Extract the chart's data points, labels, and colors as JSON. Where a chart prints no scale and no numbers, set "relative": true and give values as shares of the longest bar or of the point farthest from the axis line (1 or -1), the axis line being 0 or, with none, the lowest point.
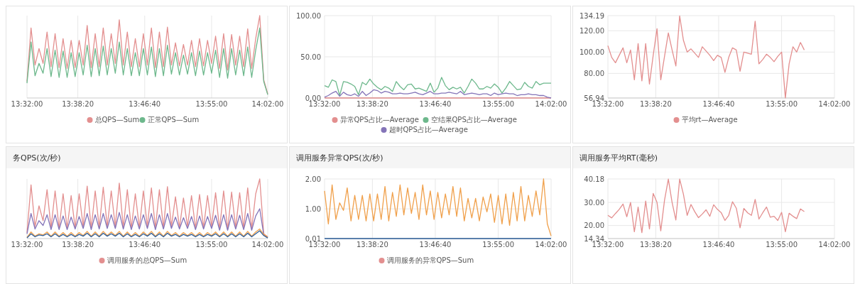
{
  "chart_data": [
    {
      "type": "line",
      "relative": true,
      "grid": "x",
      "legend": "bottom",
      "xlim": [
        13.5333,
        14.0333
      ],
      "xticks": [
        {
          "value": 13.5333,
          "label": "13:32:00"
        },
        {
          "value": 13.6389,
          "label": "13:38:20"
        },
        {
          "value": 13.7778,
          "label": "13:46:40"
        },
        {
          "value": 13.9167,
          "label": "13:55:00"
        },
        {
          "value": 14.0333,
          "label": "14:02:00"
        }
      ],
      "x": [
        13.5333,
        13.5417,
        13.55,
        13.5583,
        13.5667,
        13.575,
        13.5833,
        13.5917,
        13.6,
        13.6083,
        13.6167,
        13.625,
        13.6333,
        13.6417,
        13.65,
        13.6583,
        13.6667,
        13.675,
        13.6833,
        13.6917,
        13.7,
        13.7083,
        13.7167,
        13.725,
        13.7333,
        13.7417,
        13.75,
        13.7583,
        13.7667,
        13.775,
        13.7833,
        13.7917,
        13.8,
        13.8083,
        13.8167,
        13.825,
        13.8333,
        13.8417,
        13.85,
        13.8583,
        13.8667,
        13.875,
        13.8833,
        13.8917,
        13.9,
        13.9083,
        13.9167,
        13.925,
        13.9333,
        13.9417,
        13.95,
        13.9583,
        13.9667,
        13.975,
        13.9833,
        13.9917,
        14.0,
        14.0083,
        14.0167,
        14.025,
        14.0333
      ],
      "series": [
        {
          "name": "总QPS—Sum",
          "color": "#e38f8f",
          "values": [
            0.2,
            0.85,
            0.4,
            0.6,
            0.42,
            0.8,
            0.38,
            0.78,
            0.37,
            0.72,
            0.36,
            0.7,
            0.37,
            0.7,
            0.4,
            0.88,
            0.37,
            0.78,
            0.38,
            0.85,
            0.4,
            0.78,
            0.42,
            0.95,
            0.4,
            0.8,
            0.38,
            0.72,
            0.38,
            0.78,
            0.4,
            0.85,
            0.37,
            0.8,
            0.38,
            0.86,
            0.4,
            0.67,
            0.39,
            0.65,
            0.4,
            0.7,
            0.38,
            0.72,
            0.39,
            0.7,
            0.42,
            0.75,
            0.36,
            0.78,
            0.34,
            0.77,
            0.4,
            0.75,
            0.38,
            0.84,
            0.36,
            0.72,
            1.0,
            0.22,
            0.05
          ]
        },
        {
          "name": "正常QPS—Sum",
          "color": "#6db88c",
          "values": [
            0.18,
            0.68,
            0.27,
            0.42,
            0.3,
            0.6,
            0.26,
            0.58,
            0.25,
            0.57,
            0.25,
            0.55,
            0.26,
            0.55,
            0.28,
            0.64,
            0.26,
            0.6,
            0.27,
            0.63,
            0.28,
            0.6,
            0.3,
            0.68,
            0.28,
            0.6,
            0.27,
            0.55,
            0.27,
            0.6,
            0.28,
            0.62,
            0.26,
            0.6,
            0.27,
            0.64,
            0.29,
            0.55,
            0.28,
            0.52,
            0.29,
            0.55,
            0.27,
            0.57,
            0.28,
            0.55,
            0.3,
            0.58,
            0.25,
            0.6,
            0.24,
            0.6,
            0.28,
            0.58,
            0.27,
            0.62,
            0.25,
            0.58,
            0.85,
            0.2,
            0.04
          ]
        }
      ]
    },
    {
      "type": "line",
      "grid": true,
      "legend": "bottom",
      "xlim": [
        13.5333,
        14.0333
      ],
      "ylim": [
        0,
        100
      ],
      "yticks": [
        {
          "value": 0,
          "label": "0.00"
        },
        {
          "value": 50,
          "label": "50.00"
        },
        {
          "value": 100,
          "label": "100.00"
        }
      ],
      "xticks": [
        {
          "value": 13.5333,
          "label": "13:32:00"
        },
        {
          "value": 13.6389,
          "label": "13:38:20"
        },
        {
          "value": 13.7778,
          "label": "13:46:40"
        },
        {
          "value": 13.9167,
          "label": "13:55:00"
        },
        {
          "value": 14.0333,
          "label": "14:02:00"
        }
      ],
      "x": [
        13.5333,
        13.5417,
        13.55,
        13.5583,
        13.5667,
        13.575,
        13.5833,
        13.5917,
        13.6,
        13.6083,
        13.6167,
        13.625,
        13.6333,
        13.6417,
        13.65,
        13.6583,
        13.6667,
        13.675,
        13.6833,
        13.6917,
        13.7,
        13.7083,
        13.7167,
        13.725,
        13.7333,
        13.7417,
        13.75,
        13.7583,
        13.7667,
        13.775,
        13.7833,
        13.7917,
        13.8,
        13.8083,
        13.8167,
        13.825,
        13.8333,
        13.8417,
        13.85,
        13.8583,
        13.8667,
        13.875,
        13.8833,
        13.8917,
        13.9,
        13.9083,
        13.9167,
        13.925,
        13.9333,
        13.9417,
        13.95,
        13.9583,
        13.9667,
        13.975,
        13.9833,
        13.9917,
        14.0,
        14.0083,
        14.0167,
        14.025,
        14.0333
      ],
      "series": [
        {
          "name": "异常QPS占比—Average",
          "color": "#e38f8f",
          "values": [
            0,
            0,
            0,
            0,
            0,
            0,
            0,
            0,
            0,
            0,
            0,
            0,
            0,
            0,
            0,
            0,
            0,
            0,
            0,
            0,
            0,
            0,
            0,
            0,
            0,
            0,
            0,
            0,
            0,
            0,
            0,
            0,
            0,
            0,
            0,
            0,
            0,
            0,
            0,
            0,
            0,
            0,
            0,
            0,
            0,
            0,
            0,
            0,
            0,
            0,
            0,
            0,
            0,
            0,
            0,
            0,
            0,
            0,
            0,
            0,
            0
          ]
        },
        {
          "name": "空结果QPS占比—Average",
          "color": "#6db88c",
          "values": [
            15,
            13,
            22,
            20,
            3,
            20,
            19,
            17,
            14,
            4,
            19,
            16,
            23,
            17,
            13,
            10,
            14,
            12,
            8,
            20,
            14,
            10,
            16,
            17,
            11,
            12,
            10,
            8,
            18,
            7,
            12,
            25,
            15,
            10,
            13,
            11,
            13,
            6,
            14,
            23,
            18,
            11,
            11,
            14,
            12,
            17,
            13,
            6,
            12,
            20,
            15,
            10,
            11,
            19,
            14,
            12,
            20,
            16,
            18,
            18,
            18
          ]
        },
        {
          "name": "超时QPS占比—Average",
          "color": "#8474b8",
          "values": [
            1,
            3,
            6,
            8,
            2,
            7,
            4,
            3,
            5,
            2,
            8,
            3,
            6,
            10,
            9,
            6,
            8,
            7,
            5,
            5,
            6,
            5,
            5,
            6,
            7,
            5,
            4,
            6,
            8,
            5,
            5,
            6,
            6,
            7,
            6,
            5,
            8,
            4,
            5,
            6,
            5,
            4,
            5,
            5,
            3,
            6,
            4,
            5,
            6,
            5,
            5,
            3,
            4,
            4,
            5,
            4,
            4,
            3,
            3,
            1,
            0
          ]
        }
      ]
    },
    {
      "type": "line",
      "grid": true,
      "legend": "bottom",
      "xlim": [
        13.5333,
        14.0333
      ],
      "ylim": [
        56.94,
        134.19
      ],
      "yticks": [
        {
          "value": 56.94,
          "label": "56.94"
        },
        {
          "value": 80,
          "label": "80.00"
        },
        {
          "value": 100,
          "label": "100.00"
        },
        {
          "value": 120,
          "label": "120.00"
        },
        {
          "value": 134.19,
          "label": "134.19"
        }
      ],
      "xticks": [
        {
          "value": 13.5333,
          "label": "13:32:00"
        },
        {
          "value": 13.6389,
          "label": "13:38:20"
        },
        {
          "value": 13.7778,
          "label": "13:46:40"
        },
        {
          "value": 13.9167,
          "label": "13:55:00"
        },
        {
          "value": 14.0333,
          "label": "14:02:00"
        }
      ],
      "x": [
        13.5333,
        13.5417,
        13.55,
        13.5583,
        13.5667,
        13.575,
        13.5833,
        13.5917,
        13.6,
        13.6083,
        13.6167,
        13.625,
        13.6333,
        13.6417,
        13.65,
        13.6583,
        13.6667,
        13.675,
        13.6833,
        13.6917,
        13.7,
        13.7083,
        13.7167,
        13.725,
        13.7333,
        13.7417,
        13.75,
        13.7583,
        13.7667,
        13.775,
        13.7833,
        13.7917,
        13.8,
        13.8083,
        13.8167,
        13.825,
        13.8333,
        13.8417,
        13.85,
        13.8583,
        13.8667,
        13.875,
        13.8833,
        13.8917,
        13.9,
        13.9083,
        13.9167,
        13.925,
        13.9333,
        13.9417,
        13.95,
        13.9583,
        13.9667
      ],
      "series": [
        {
          "name": "平均rt—Average",
          "color": "#e38f8f",
          "values": [
            106,
            95,
            90,
            97,
            104,
            90,
            102,
            74,
            108,
            73,
            108,
            70,
            97,
            122,
            74,
            96,
            118,
            102,
            87,
            134,
            111,
            100,
            103,
            99,
            95,
            105,
            101,
            97,
            92,
            97,
            95,
            81,
            95,
            104,
            102,
            82,
            100,
            99,
            98,
            129,
            89,
            93,
            98,
            95,
            91,
            96,
            100,
            57,
            89,
            105,
            100,
            109,
            102
          ]
        }
      ]
    },
    {
      "type": "line",
      "title": "务QPS(次/秒)",
      "relative": true,
      "grid": "x",
      "legend": "bottom",
      "xlim": [
        13.5333,
        14.0333
      ],
      "xticks": [
        {
          "value": 13.5333,
          "label": "13:32:00"
        },
        {
          "value": 13.6389,
          "label": "13:38:20"
        },
        {
          "value": 13.7778,
          "label": "13:46:40"
        },
        {
          "value": 13.9167,
          "label": "13:55:00"
        },
        {
          "value": 14.0333,
          "label": "14:02:00"
        }
      ],
      "x": [
        13.5333,
        13.5417,
        13.55,
        13.5583,
        13.5667,
        13.575,
        13.5833,
        13.5917,
        13.6,
        13.6083,
        13.6167,
        13.625,
        13.6333,
        13.6417,
        13.65,
        13.6583,
        13.6667,
        13.675,
        13.6833,
        13.6917,
        13.7,
        13.7083,
        13.7167,
        13.725,
        13.7333,
        13.7417,
        13.75,
        13.7583,
        13.7667,
        13.775,
        13.7833,
        13.7917,
        13.8,
        13.8083,
        13.8167,
        13.825,
        13.8333,
        13.8417,
        13.85,
        13.8583,
        13.8667,
        13.875,
        13.8833,
        13.8917,
        13.9,
        13.9083,
        13.9167,
        13.925,
        13.9333,
        13.9417,
        13.95,
        13.9583,
        13.9667,
        13.975,
        13.9833,
        13.9917,
        14.0,
        14.0083,
        14.0167,
        14.025,
        14.0333
      ],
      "series": [
        {
          "name": "调用服务的总QPS—Sum",
          "color": "#e38f8f",
          "values": [
            0.1,
            0.9,
            0.2,
            0.55,
            0.3,
            0.82,
            0.18,
            0.8,
            0.17,
            0.75,
            0.17,
            0.72,
            0.18,
            0.75,
            0.2,
            0.88,
            0.17,
            0.8,
            0.18,
            0.86,
            0.2,
            0.8,
            0.2,
            0.93,
            0.18,
            0.82,
            0.17,
            0.75,
            0.18,
            0.8,
            0.2,
            0.85,
            0.17,
            0.82,
            0.18,
            0.87,
            0.2,
            0.7,
            0.18,
            0.68,
            0.2,
            0.72,
            0.17,
            0.74,
            0.18,
            0.72,
            0.2,
            0.77,
            0.16,
            0.8,
            0.15,
            0.78,
            0.18,
            0.77,
            0.17,
            0.85,
            0.16,
            0.75,
            1.0,
            0.08,
            0.03
          ]
        },
        {
          "color": "#8474b8",
          "values": [
            0.08,
            0.42,
            0.16,
            0.3,
            0.22,
            0.4,
            0.15,
            0.4,
            0.15,
            0.38,
            0.15,
            0.36,
            0.16,
            0.37,
            0.17,
            0.42,
            0.15,
            0.4,
            0.16,
            0.42,
            0.17,
            0.4,
            0.17,
            0.44,
            0.16,
            0.4,
            0.15,
            0.38,
            0.16,
            0.4,
            0.17,
            0.42,
            0.15,
            0.4,
            0.16,
            0.42,
            0.17,
            0.36,
            0.16,
            0.35,
            0.17,
            0.37,
            0.15,
            0.38,
            0.16,
            0.37,
            0.17,
            0.39,
            0.14,
            0.4,
            0.14,
            0.4,
            0.16,
            0.39,
            0.15,
            0.42,
            0.14,
            0.38,
            0.5,
            0.06,
            0.02
          ]
        },
        {
          "color": "#f0a04b",
          "values": [
            0.02,
            0.11,
            0.04,
            0.08,
            0.06,
            0.11,
            0.04,
            0.11,
            0.04,
            0.1,
            0.04,
            0.1,
            0.04,
            0.1,
            0.05,
            0.12,
            0.04,
            0.11,
            0.04,
            0.12,
            0.05,
            0.11,
            0.05,
            0.12,
            0.04,
            0.11,
            0.04,
            0.1,
            0.04,
            0.11,
            0.05,
            0.12,
            0.04,
            0.11,
            0.04,
            0.12,
            0.05,
            0.1,
            0.04,
            0.1,
            0.05,
            0.1,
            0.04,
            0.1,
            0.04,
            0.1,
            0.05,
            0.11,
            0.04,
            0.11,
            0.04,
            0.11,
            0.04,
            0.11,
            0.04,
            0.12,
            0.04,
            0.11,
            0.16,
            0.07,
            0.02
          ]
        },
        {
          "color": "#2e5f9a",
          "values": [
            0.01,
            0.08,
            0.03,
            0.06,
            0.05,
            0.08,
            0.03,
            0.08,
            0.03,
            0.07,
            0.03,
            0.07,
            0.03,
            0.07,
            0.04,
            0.09,
            0.03,
            0.08,
            0.03,
            0.09,
            0.04,
            0.08,
            0.04,
            0.09,
            0.03,
            0.08,
            0.03,
            0.07,
            0.03,
            0.08,
            0.04,
            0.09,
            0.03,
            0.08,
            0.03,
            0.09,
            0.04,
            0.07,
            0.03,
            0.07,
            0.04,
            0.07,
            0.03,
            0.07,
            0.03,
            0.07,
            0.04,
            0.08,
            0.03,
            0.08,
            0.03,
            0.08,
            0.03,
            0.08,
            0.03,
            0.09,
            0.03,
            0.08,
            0.13,
            0.05,
            0.01
          ]
        }
      ]
    },
    {
      "type": "line",
      "title": "调用服务异常QPS(次/秒)",
      "grid": true,
      "legend": "bottom",
      "xlim": [
        13.5333,
        14.0333
      ],
      "ylim": [
        0.01,
        2
      ],
      "yticks": [
        {
          "value": 0.01,
          "label": "0.01"
        },
        {
          "value": 1,
          "label": "1.00"
        },
        {
          "value": 2,
          "label": "2.00"
        }
      ],
      "xticks": [
        {
          "value": 13.5333,
          "label": "13:32:00"
        },
        {
          "value": 13.6389,
          "label": "13:38:20"
        },
        {
          "value": 13.7778,
          "label": "13:46:40"
        },
        {
          "value": 13.9167,
          "label": "13:55:00"
        },
        {
          "value": 14.0333,
          "label": "14:02:00"
        }
      ],
      "x": [
        13.5333,
        13.5417,
        13.55,
        13.5583,
        13.5667,
        13.575,
        13.5833,
        13.5917,
        13.6,
        13.6083,
        13.6167,
        13.625,
        13.6333,
        13.6417,
        13.65,
        13.6583,
        13.6667,
        13.675,
        13.6833,
        13.6917,
        13.7,
        13.7083,
        13.7167,
        13.725,
        13.7333,
        13.7417,
        13.75,
        13.7583,
        13.7667,
        13.775,
        13.7833,
        13.7917,
        13.8,
        13.8083,
        13.8167,
        13.825,
        13.8333,
        13.8417,
        13.85,
        13.8583,
        13.8667,
        13.875,
        13.8833,
        13.8917,
        13.9,
        13.9083,
        13.9167,
        13.925,
        13.9333,
        13.9417,
        13.95,
        13.9583,
        13.9667,
        13.975,
        13.9833,
        13.9917,
        14.0,
        14.0083,
        14.0167,
        14.025,
        14.0333
      ],
      "series": [
        {
          "name": "调用服务的异常QPS—Sum",
          "color": "#e38f8f",
          "values": [
            null,
            null,
            null,
            null,
            null,
            null,
            null,
            null,
            null,
            null,
            null,
            null,
            null,
            null,
            null,
            null,
            null,
            null,
            null,
            null,
            null,
            null,
            null,
            null,
            null,
            null,
            null,
            null,
            null,
            null,
            null,
            null,
            null,
            null,
            null,
            null,
            null,
            null,
            null,
            null,
            null,
            null,
            null,
            null,
            null,
            null,
            null,
            null,
            null,
            null,
            null,
            null,
            null,
            null,
            null,
            null,
            null,
            null,
            null,
            null,
            null
          ]
        },
        {
          "color": "#2e5f9a",
          "values": [
            0.01,
            0.01,
            0.01,
            0.01,
            0.01,
            0.01,
            0.01,
            0.01,
            0.01,
            0.01,
            0.01,
            0.01,
            0.01,
            0.01,
            0.01,
            0.01,
            0.01,
            0.01,
            0.01,
            0.01,
            0.01,
            0.01,
            0.01,
            0.01,
            0.01,
            0.01,
            0.01,
            0.01,
            0.01,
            0.01,
            0.01,
            0.01,
            0.01,
            0.01,
            0.01,
            0.01,
            0.01,
            0.01,
            0.01,
            0.01,
            0.01,
            0.01,
            0.01,
            0.01,
            0.01,
            0.01,
            0.01,
            0.01,
            0.01,
            0.01,
            0.01,
            0.01,
            0.01,
            0.01,
            0.01,
            0.01,
            0.01,
            0.01,
            0.01,
            0.01,
            0.01
          ]
        },
        {
          "color": "#f0a04b",
          "values": [
            1.6,
            0.5,
            1.8,
            0.65,
            1.2,
            0.95,
            1.7,
            0.6,
            1.45,
            0.65,
            1.45,
            0.6,
            1.5,
            0.6,
            1.5,
            0.65,
            1.75,
            0.6,
            1.55,
            0.75,
            1.8,
            0.8,
            1.7,
            0.85,
            1.55,
            0.65,
            1.8,
            0.8,
            1.6,
            0.65,
            1.55,
            0.7,
            1.5,
            0.8,
            1.75,
            0.75,
            1.7,
            0.6,
            1.35,
            0.7,
            1.35,
            0.6,
            1.4,
            0.9,
            1.5,
            0.55,
            1.45,
            0.5,
            1.5,
            0.45,
            1.55,
            0.6,
            1.75,
            0.6,
            1.45,
            0.75,
            1.6,
            0.8,
            2.0,
            0.5,
            0.1
          ]
        }
      ]
    },
    {
      "type": "line",
      "title": "调用服务平均RT(毫秒)",
      "grid": true,
      "xlim": [
        13.5333,
        14.0333
      ],
      "ylim": [
        14.34,
        40.18
      ],
      "yticks": [
        {
          "value": 14.34,
          "label": "14.34"
        },
        {
          "value": 20,
          "label": "20.00"
        },
        {
          "value": 30,
          "label": "30.00"
        },
        {
          "value": 40.18,
          "label": "40.18"
        }
      ],
      "xticks": [
        {
          "value": 13.5333,
          "label": "13:32:00"
        },
        {
          "value": 13.6389,
          "label": "13:38:20"
        },
        {
          "value": 13.7778,
          "label": "13:46:40"
        },
        {
          "value": 13.9167,
          "label": "13:55:00"
        },
        {
          "value": 14.0333,
          "label": "14:02:00"
        }
      ],
      "x": [
        13.5333,
        13.5417,
        13.55,
        13.5583,
        13.5667,
        13.575,
        13.5833,
        13.5917,
        13.6,
        13.6083,
        13.6167,
        13.625,
        13.6333,
        13.6417,
        13.65,
        13.6583,
        13.6667,
        13.675,
        13.6833,
        13.6917,
        13.7,
        13.7083,
        13.7167,
        13.725,
        13.7333,
        13.7417,
        13.75,
        13.7583,
        13.7667,
        13.775,
        13.7833,
        13.7917,
        13.8,
        13.8083,
        13.8167,
        13.825,
        13.8333,
        13.8417,
        13.85,
        13.8583,
        13.8667,
        13.875,
        13.8833,
        13.8917,
        13.9,
        13.9083,
        13.9167,
        13.925,
        13.9333,
        13.9417,
        13.95,
        13.9583,
        13.9667
      ],
      "series": [
        {
          "color": "#e38f8f",
          "values": [
            24.4,
            23.3,
            25.2,
            27,
            29.3,
            23.8,
            30,
            17.3,
            28,
            16.9,
            30.6,
            18.5,
            33.9,
            30,
            17.7,
            31,
            40.1,
            30,
            22.4,
            40.1,
            33.5,
            24.4,
            29.1,
            26,
            23.4,
            25,
            26.8,
            24,
            29,
            27,
            25.6,
            22.2,
            24.4,
            30.3,
            27.5,
            19,
            27.4,
            25.5,
            24.4,
            31.3,
            22.8,
            25.5,
            28,
            23.6,
            24,
            22.2,
            25.7,
            17.3,
            25.3,
            24,
            23,
            27.2,
            26
          ]
        }
      ]
    }
  ]
}
